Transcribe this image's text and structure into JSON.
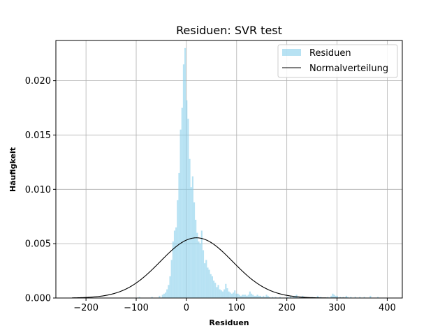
{
  "chart_data": {
    "type": "bar",
    "title": "Residuen: SVR test",
    "xlabel": "Residuen",
    "ylabel": "Häufigkeit",
    "xlim": [
      -260,
      430
    ],
    "ylim": [
      0,
      0.0237
    ],
    "grid": true,
    "x_ticks": [
      -200,
      -100,
      0,
      100,
      200,
      300,
      400
    ],
    "x_tick_labels": [
      "−200",
      "−100",
      "0",
      "100",
      "200",
      "300",
      "400"
    ],
    "y_ticks": [
      0.0,
      0.005,
      0.01,
      0.015,
      0.02
    ],
    "y_tick_labels": [
      "0.000",
      "0.005",
      "0.010",
      "0.015",
      "0.020"
    ],
    "legend_position": "top-right",
    "colors": {
      "histogram": "#87ceeb",
      "normal_curve": "#000000",
      "grid": "#b0b0b0"
    },
    "series": [
      {
        "name": "Residuen",
        "type": "histogram",
        "bin_width": 3,
        "bins": [
          [
            -55,
            0.0002
          ],
          [
            -52,
            0.0
          ],
          [
            -49,
            0.0003
          ],
          [
            -46,
            0.0004
          ],
          [
            -43,
            0.0005
          ],
          [
            -40,
            0.0008
          ],
          [
            -37,
            0.0012
          ],
          [
            -34,
            0.002
          ],
          [
            -31,
            0.0035
          ],
          [
            -28,
            0.0052
          ],
          [
            -25,
            0.0062
          ],
          [
            -22,
            0.0065
          ],
          [
            -19,
            0.009
          ],
          [
            -16,
            0.0115
          ],
          [
            -13,
            0.0155
          ],
          [
            -10,
            0.0175
          ],
          [
            -7,
            0.0215
          ],
          [
            -4,
            0.023
          ],
          [
            -1,
            0.0182
          ],
          [
            2,
            0.0165
          ],
          [
            5,
            0.0128
          ],
          [
            8,
            0.0102
          ],
          [
            11,
            0.0112
          ],
          [
            14,
            0.0088
          ],
          [
            17,
            0.0072
          ],
          [
            20,
            0.006
          ],
          [
            23,
            0.0052
          ],
          [
            26,
            0.005
          ],
          [
            29,
            0.0062
          ],
          [
            32,
            0.0044
          ],
          [
            35,
            0.0032
          ],
          [
            38,
            0.0035
          ],
          [
            41,
            0.0028
          ],
          [
            44,
            0.0026
          ],
          [
            47,
            0.0022
          ],
          [
            50,
            0.002
          ],
          [
            53,
            0.0016
          ],
          [
            56,
            0.0014
          ],
          [
            59,
            0.001
          ],
          [
            62,
            0.0012
          ],
          [
            65,
            0.0008
          ],
          [
            68,
            0.0007
          ],
          [
            71,
            0.0006
          ],
          [
            74,
            0.0008
          ],
          [
            77,
            0.0013
          ],
          [
            80,
            0.0009
          ],
          [
            83,
            0.0006
          ],
          [
            86,
            0.0005
          ],
          [
            89,
            0.0004
          ],
          [
            92,
            0.0005
          ],
          [
            95,
            0.0007
          ],
          [
            98,
            0.0004
          ],
          [
            101,
            0.0004
          ],
          [
            104,
            0.0003
          ],
          [
            107,
            0.0002
          ],
          [
            110,
            0.0003
          ],
          [
            113,
            0.0003
          ],
          [
            116,
            0.0003
          ],
          [
            119,
            0.0002
          ],
          [
            122,
            0.0003
          ],
          [
            125,
            0.0006
          ],
          [
            128,
            0.0004
          ],
          [
            131,
            0.0003
          ],
          [
            134,
            0.0002
          ],
          [
            137,
            0.0002
          ],
          [
            140,
            0.0003
          ],
          [
            143,
            0.0002
          ],
          [
            146,
            0.0002
          ],
          [
            149,
            0.0001
          ],
          [
            152,
            0.0002
          ],
          [
            155,
            0.0001
          ],
          [
            158,
            0.0003
          ],
          [
            161,
            0.0002
          ],
          [
            164,
            0.0001
          ],
          [
            170,
            0.0001
          ],
          [
            176,
            0.0001
          ],
          [
            185,
            0.0001
          ],
          [
            200,
            0.0001
          ],
          [
            206,
            0.0002
          ],
          [
            212,
            0.0002
          ],
          [
            215,
            0.0002
          ],
          [
            218,
            0.0003
          ],
          [
            224,
            0.0001
          ],
          [
            230,
            0.0002
          ],
          [
            236,
            0.0001
          ],
          [
            250,
            0.0001
          ],
          [
            260,
            0.0002
          ],
          [
            266,
            0.0001
          ],
          [
            280,
            0.0001
          ],
          [
            287,
            0.0002
          ],
          [
            290,
            0.0004
          ],
          [
            293,
            0.0003
          ],
          [
            296,
            0.0002
          ],
          [
            299,
            0.0002
          ],
          [
            305,
            0.0001
          ],
          [
            311,
            0.0001
          ],
          [
            317,
            0.0002
          ],
          [
            320,
            0.0001
          ],
          [
            326,
            0.0001
          ],
          [
            335,
            0.0001
          ],
          [
            344,
            0.0001
          ],
          [
            353,
            0.0001
          ],
          [
            365,
            0.0002
          ],
          [
            380,
            0.0001
          ],
          [
            -95,
            0.0001
          ],
          [
            -70,
            0.0001
          ]
        ]
      },
      {
        "name": "Normalverteilung",
        "type": "line",
        "distribution": {
          "mean": 20,
          "std": 72,
          "x_range": [
            -228,
            430
          ]
        }
      }
    ]
  }
}
